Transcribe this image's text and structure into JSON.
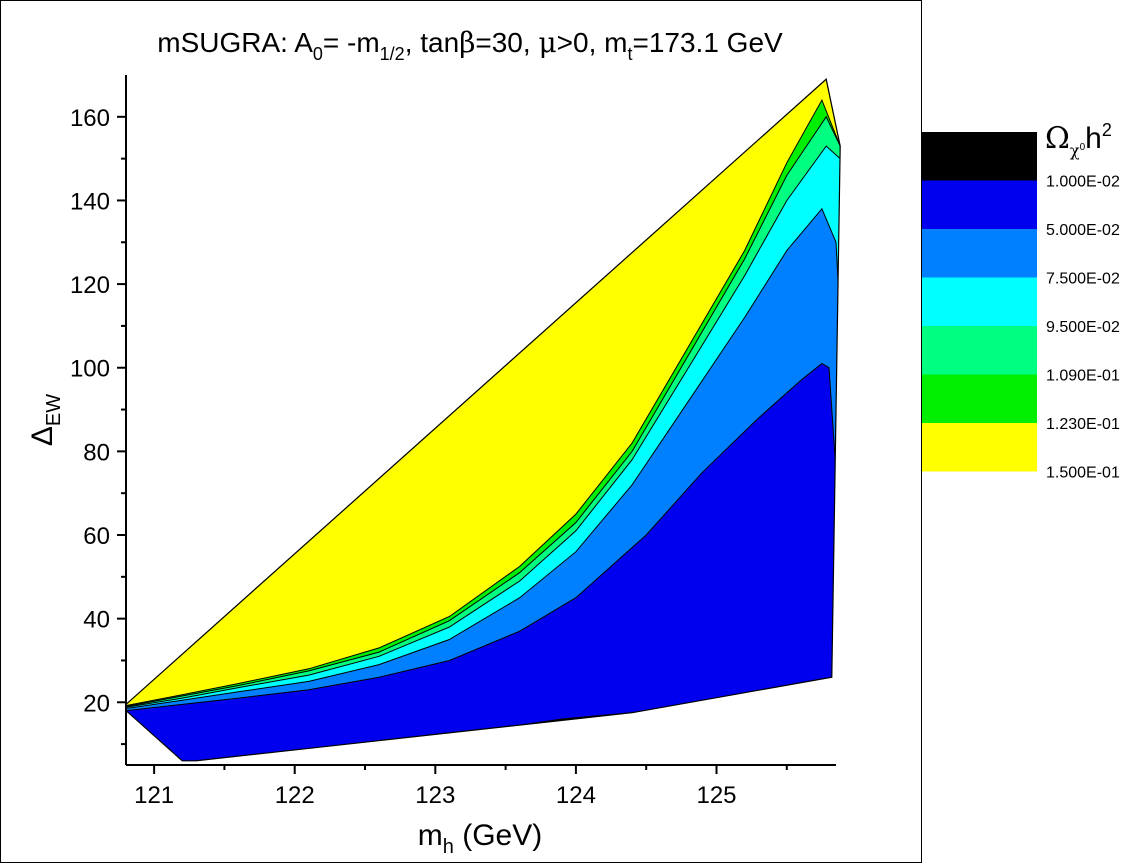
{
  "chart_data": {
    "type": "heatmap",
    "title": {
      "lead": "mSUGRA: A",
      "a_sub": "0",
      "mid1": "= -m",
      "m_sub": "1/2",
      "mid2": ", tan",
      "beta": "β",
      "mid3": "=30, ",
      "mu": "μ",
      "mid4": ">0, m",
      "t_sub": "t",
      "tail": "=173.1 GeV"
    },
    "xlabel": {
      "main": "m",
      "sub": "h",
      "rest": " (GeV)"
    },
    "ylabel": {
      "main": "Δ",
      "sub": "EW"
    },
    "xlim": [
      120.8,
      125.85
    ],
    "ylim": [
      5,
      170
    ],
    "x_ticks": [
      121,
      122,
      123,
      124,
      125
    ],
    "y_ticks": [
      20,
      40,
      60,
      80,
      100,
      120,
      140,
      160
    ],
    "legend": {
      "title": {
        "main": "Ω",
        "sub": "χ",
        "sup0": "0",
        "h": "h",
        "sup2": "2"
      },
      "placement": "right",
      "levels": [
        "1.000E-02",
        "5.000E-02",
        "7.500E-02",
        "9.500E-02",
        "1.090E-01",
        "1.230E-01",
        "1.500E-01"
      ],
      "colors": [
        "#000000",
        "#0000ee",
        "#0080ff",
        "#00ffff",
        "#00ff80",
        "#00ee00",
        "#ffff00"
      ]
    },
    "region_outline": [
      [
        120.8,
        19.5
      ],
      [
        125.78,
        169
      ],
      [
        125.88,
        153
      ],
      [
        125.82,
        26
      ],
      [
        124.4,
        17.5
      ],
      [
        121.3,
        6
      ],
      [
        121.2,
        6
      ],
      [
        120.8,
        18
      ]
    ],
    "bands": [
      {
        "level": "1.000E-02",
        "color": "#000000",
        "upper": [
          [
            121.3,
            6
          ],
          [
            121.7,
            7.5
          ],
          [
            122.2,
            9
          ],
          [
            122.8,
            11
          ],
          [
            123.4,
            13.5
          ],
          [
            123.9,
            16
          ],
          [
            124.4,
            17.5
          ]
        ]
      },
      {
        "level": "5.000E-02",
        "color": "#0000ee",
        "upper": [
          [
            120.8,
            18
          ],
          [
            121.2,
            19.5
          ],
          [
            121.6,
            21
          ],
          [
            122.1,
            23
          ],
          [
            122.6,
            26
          ],
          [
            123.1,
            30
          ],
          [
            123.6,
            37
          ],
          [
            124.0,
            45
          ],
          [
            124.5,
            60
          ],
          [
            124.9,
            75
          ],
          [
            125.3,
            88
          ],
          [
            125.6,
            97
          ],
          [
            125.75,
            101
          ],
          [
            125.8,
            100
          ]
        ]
      },
      {
        "level": "7.500E-02",
        "color": "#0080ff",
        "upper": [
          [
            120.8,
            18.5
          ],
          [
            121.2,
            20.5
          ],
          [
            121.6,
            22.5
          ],
          [
            122.1,
            25
          ],
          [
            122.6,
            29
          ],
          [
            123.1,
            35
          ],
          [
            123.6,
            45
          ],
          [
            124.0,
            56
          ],
          [
            124.4,
            72
          ],
          [
            124.8,
            92
          ],
          [
            125.2,
            112
          ],
          [
            125.5,
            128
          ],
          [
            125.75,
            138
          ],
          [
            125.85,
            130
          ]
        ]
      },
      {
        "level": "9.500E-02",
        "color": "#00ffff",
        "upper": [
          [
            120.8,
            18.8
          ],
          [
            121.2,
            21
          ],
          [
            121.6,
            23.5
          ],
          [
            122.1,
            26.5
          ],
          [
            122.6,
            31
          ],
          [
            123.1,
            38
          ],
          [
            123.6,
            49
          ],
          [
            124.0,
            61
          ],
          [
            124.4,
            78
          ],
          [
            124.8,
            100
          ],
          [
            125.2,
            122
          ],
          [
            125.5,
            140
          ],
          [
            125.78,
            153
          ],
          [
            125.88,
            150
          ]
        ]
      },
      {
        "level": "1.090E-01",
        "color": "#00ff80",
        "upper": [
          [
            120.8,
            19
          ],
          [
            121.2,
            21.5
          ],
          [
            121.6,
            24
          ],
          [
            122.1,
            27.5
          ],
          [
            122.6,
            32
          ],
          [
            123.1,
            39.5
          ],
          [
            123.6,
            51
          ],
          [
            124.0,
            63
          ],
          [
            124.4,
            80
          ],
          [
            124.8,
            103
          ],
          [
            125.2,
            126
          ],
          [
            125.5,
            146
          ],
          [
            125.78,
            160
          ],
          [
            125.88,
            153
          ]
        ]
      },
      {
        "level": "1.230E-01",
        "color": "#00ee00",
        "upper": [
          [
            120.8,
            19.2
          ],
          [
            121.2,
            21.8
          ],
          [
            121.6,
            24.5
          ],
          [
            122.1,
            28
          ],
          [
            122.6,
            33
          ],
          [
            123.1,
            40.5
          ],
          [
            123.6,
            52.5
          ],
          [
            124.0,
            65
          ],
          [
            124.4,
            82
          ],
          [
            124.8,
            105
          ],
          [
            125.2,
            128
          ],
          [
            125.5,
            149
          ],
          [
            125.75,
            164
          ],
          [
            125.88,
            153
          ]
        ]
      },
      {
        "level": "1.500E-01",
        "color": "#ffff00",
        "upper": [
          [
            120.8,
            19.5
          ],
          [
            125.78,
            169
          ],
          [
            125.88,
            153
          ]
        ]
      }
    ]
  }
}
